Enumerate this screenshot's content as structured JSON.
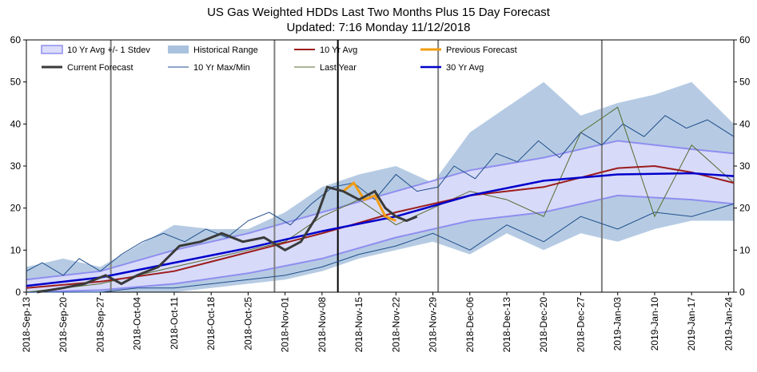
{
  "chart_data": {
    "type": "line",
    "title": "US Gas Weighted HDDs Last Two Months Plus 15 Day Forecast",
    "subtitle": "Updated: 7:16 Monday 11/12/2018",
    "ylim": [
      0,
      60
    ],
    "yticks": [
      "0",
      "10",
      "20",
      "30",
      "40",
      "50",
      "60"
    ],
    "x_start": "2018-09-13",
    "x_end": "2019-01-25",
    "x_tick_labels": [
      "2018-Sep-13",
      "2018-Sep-20",
      "2018-Sep-27",
      "2018-Oct-04",
      "2018-Oct-11",
      "2018-Oct-18",
      "2018-Oct-25",
      "2018-Nov-01",
      "2018-Nov-08",
      "2018-Nov-15",
      "2018-Nov-22",
      "2018-Nov-29",
      "2018-Dec-06",
      "2018-Dec-13",
      "2018-Dec-20",
      "2018-Dec-27",
      "2019-Jan-03",
      "2019-Jan-10",
      "2019-Jan-17",
      "2019-Jan-24"
    ],
    "vertical_markers": [
      {
        "date": "2018-09-29",
        "color": "#808080"
      },
      {
        "date": "2018-10-30",
        "color": "#808080"
      },
      {
        "date": "2018-11-11",
        "color": "#000000"
      },
      {
        "date": "2018-11-30",
        "color": "#808080"
      },
      {
        "date": "2018-12-31",
        "color": "#808080"
      }
    ],
    "legend": [
      {
        "name": "10 Yr Avg +/- 1 Stdev",
        "kind": "box-light",
        "color": "#dcdcfb"
      },
      {
        "name": "Historical Range",
        "kind": "box",
        "color": "#a9c2de"
      },
      {
        "name": "10 Yr Avg",
        "kind": "line",
        "color": "#9b1c1c"
      },
      {
        "name": "Previous Forecast",
        "kind": "line",
        "color": "#f39c12"
      },
      {
        "name": "Current Forecast",
        "kind": "line",
        "color": "#3a3a3a"
      },
      {
        "name": "10 Yr Max/Min",
        "kind": "line",
        "color": "#1f4e8c"
      },
      {
        "name": "Last Year",
        "kind": "line",
        "color": "#556b2f"
      },
      {
        "name": "30 Yr Avg",
        "kind": "line",
        "color": "#0000cc"
      }
    ],
    "series": [
      {
        "name": "10 Yr Avg",
        "x": [
          "2018-09-13",
          "2018-09-27",
          "2018-10-11",
          "2018-10-25",
          "2018-11-08",
          "2018-11-22",
          "2018-12-06",
          "2018-12-20",
          "2019-01-03",
          "2019-01-10",
          "2019-01-17",
          "2019-01-25"
        ],
        "y": [
          1,
          2.5,
          5,
          9.5,
          14,
          19,
          23,
          25,
          29.5,
          30,
          28.5,
          26
        ]
      },
      {
        "name": "30 Yr Avg",
        "x": [
          "2018-09-13",
          "2018-09-27",
          "2018-10-11",
          "2018-10-25",
          "2018-11-08",
          "2018-11-22",
          "2018-12-06",
          "2018-12-20",
          "2019-01-03",
          "2019-01-17",
          "2019-01-25"
        ],
        "y": [
          1.5,
          3.5,
          7,
          10.5,
          14.5,
          18,
          23,
          26.5,
          28,
          28.3,
          27.6
        ]
      },
      {
        "name": "10 Yr Avg +/- 1 Stdev",
        "x": [
          "2018-09-13",
          "2018-09-27",
          "2018-10-11",
          "2018-10-25",
          "2018-11-08",
          "2018-11-22",
          "2018-12-06",
          "2018-12-20",
          "2019-01-03",
          "2019-01-17",
          "2019-01-25"
        ],
        "y_upper": [
          3,
          5,
          10,
          14,
          19,
          24,
          29,
          32,
          36,
          34,
          33
        ],
        "y_lower": [
          0,
          0.5,
          2,
          4.5,
          8,
          13,
          17,
          19,
          23,
          22,
          21
        ]
      },
      {
        "name": "Historical Range",
        "x": [
          "2018-09-13",
          "2018-09-20",
          "2018-09-27",
          "2018-10-04",
          "2018-10-11",
          "2018-10-18",
          "2018-10-25",
          "2018-11-01",
          "2018-11-08",
          "2018-11-15",
          "2018-11-22",
          "2018-11-29",
          "2018-12-06",
          "2018-12-13",
          "2018-12-20",
          "2018-12-27",
          "2019-01-03",
          "2019-01-10",
          "2019-01-17",
          "2019-01-25"
        ],
        "y_upper": [
          6,
          8,
          6,
          11,
          16,
          15,
          15,
          19,
          25,
          28,
          30,
          26,
          38,
          44,
          50,
          42,
          45,
          47,
          50,
          40
        ],
        "y_lower": [
          0,
          0,
          0,
          0,
          0,
          1,
          2,
          3,
          5,
          8,
          10,
          12,
          9,
          14,
          10,
          14,
          12,
          15,
          17,
          17
        ]
      },
      {
        "name": "10 Yr Max/Min",
        "x": [
          "2018-09-13",
          "2018-09-16",
          "2018-09-20",
          "2018-09-23",
          "2018-09-27",
          "2018-10-01",
          "2018-10-05",
          "2018-10-09",
          "2018-10-13",
          "2018-10-17",
          "2018-10-21",
          "2018-10-25",
          "2018-10-29",
          "2018-11-02",
          "2018-11-06",
          "2018-11-10",
          "2018-11-14",
          "2018-11-18",
          "2018-11-22",
          "2018-11-26",
          "2018-11-30",
          "2018-12-03",
          "2018-12-07",
          "2018-12-11",
          "2018-12-15",
          "2018-12-19",
          "2018-12-23",
          "2018-12-27",
          "2018-12-31",
          "2019-01-04",
          "2019-01-08",
          "2019-01-12",
          "2019-01-16",
          "2019-01-20",
          "2019-01-25"
        ],
        "y": [
          5,
          7,
          4,
          8,
          5,
          9,
          12,
          14,
          12,
          15,
          13,
          17,
          19,
          16,
          21,
          25,
          26,
          22,
          28,
          24,
          25,
          30,
          27,
          33,
          31,
          36,
          32,
          38,
          35,
          40,
          37,
          42,
          39,
          41,
          37
        ]
      },
      {
        "name": "10 Yr Max/Min (min)",
        "x": [
          "2018-09-13",
          "2018-09-20",
          "2018-09-27",
          "2018-10-04",
          "2018-10-11",
          "2018-10-18",
          "2018-10-25",
          "2018-11-01",
          "2018-11-08",
          "2018-11-15",
          "2018-11-22",
          "2018-11-29",
          "2018-12-06",
          "2018-12-13",
          "2018-12-20",
          "2018-12-27",
          "2019-01-03",
          "2019-01-10",
          "2019-01-17",
          "2019-01-25"
        ],
        "y": [
          0,
          0,
          0,
          1,
          1,
          2,
          3,
          4,
          6,
          9,
          11,
          14,
          10,
          16,
          12,
          18,
          15,
          19,
          18,
          21
        ]
      },
      {
        "name": "Last Year",
        "x": [
          "2018-09-13",
          "2018-09-20",
          "2018-09-27",
          "2018-10-04",
          "2018-10-11",
          "2018-10-18",
          "2018-10-25",
          "2018-11-01",
          "2018-11-08",
          "2018-11-15",
          "2018-11-22",
          "2018-11-29",
          "2018-12-06",
          "2018-12-13",
          "2018-12-20",
          "2018-12-27",
          "2019-01-03",
          "2019-01-10",
          "2019-01-17",
          "2019-01-25"
        ],
        "y": [
          0,
          1,
          2,
          4,
          6,
          8,
          10,
          12,
          18,
          22,
          16,
          20,
          24,
          22,
          18,
          38,
          44,
          18,
          35,
          26
        ]
      },
      {
        "name": "Current Forecast",
        "x": [
          "2018-09-15",
          "2018-09-20",
          "2018-09-24",
          "2018-09-28",
          "2018-10-01",
          "2018-10-04",
          "2018-10-08",
          "2018-10-12",
          "2018-10-16",
          "2018-10-20",
          "2018-10-24",
          "2018-10-28",
          "2018-11-01",
          "2018-11-04",
          "2018-11-07",
          "2018-11-09",
          "2018-11-12",
          "2018-11-15",
          "2018-11-18",
          "2018-11-20",
          "2018-11-22",
          "2018-11-24",
          "2018-11-26"
        ],
        "y": [
          0,
          1,
          2,
          4,
          2,
          4,
          6,
          11,
          12,
          14,
          12,
          13,
          10,
          12,
          18,
          25,
          24,
          22,
          24,
          20,
          18,
          17,
          18
        ]
      },
      {
        "name": "Previous Forecast",
        "x": [
          "2018-11-12",
          "2018-11-14",
          "2018-11-16",
          "2018-11-18",
          "2018-11-20",
          "2018-11-22"
        ],
        "y": [
          24,
          26,
          22,
          23,
          18,
          17
        ]
      }
    ]
  }
}
